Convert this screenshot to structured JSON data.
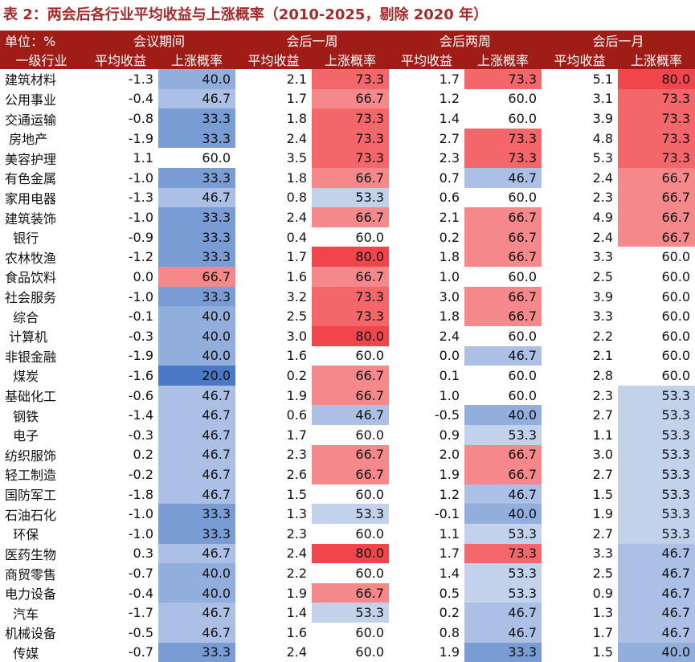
{
  "title": "表 2：两会后各行业平均收益与上涨概率（2010-2025，剔除 2020 年）",
  "header": {
    "unit_label": "单位：%",
    "industry_label": "一级行业",
    "groups": [
      "会议期间",
      "会后一周",
      "会后两周",
      "会后一月"
    ],
    "sub_return": "平均收益",
    "sub_prob": "上涨概率"
  },
  "colors": {
    "header_bg": "#a01c16",
    "title": "#a52a2a",
    "high": "#f0454a",
    "low": "#4a78c4",
    "neutral": "#ffffff"
  },
  "rows": [
    {
      "name": "建筑材料",
      "v": [
        "-1.3",
        "40.0",
        "2.1",
        "73.3",
        "1.7",
        "73.3",
        "5.1",
        "80.0"
      ]
    },
    {
      "name": "公用事业",
      "v": [
        "-0.4",
        "46.7",
        "1.7",
        "66.7",
        "1.2",
        "60.0",
        "3.1",
        "73.3"
      ]
    },
    {
      "name": "交通运输",
      "v": [
        "-0.8",
        "33.3",
        "1.8",
        "73.3",
        "1.4",
        "60.0",
        "3.9",
        "73.3"
      ]
    },
    {
      "name": " 房地产",
      "v": [
        "-1.9",
        "33.3",
        "2.4",
        "73.3",
        "2.7",
        "73.3",
        "4.8",
        "73.3"
      ]
    },
    {
      "name": "美容护理",
      "v": [
        "1.1",
        "60.0",
        "3.5",
        "73.3",
        "2.3",
        "73.3",
        "5.3",
        "73.3"
      ]
    },
    {
      "name": "有色金属",
      "v": [
        "-1.0",
        "33.3",
        "1.8",
        "66.7",
        "0.7",
        "46.7",
        "2.4",
        "66.7"
      ]
    },
    {
      "name": "家用电器",
      "v": [
        "-1.3",
        "46.7",
        "0.8",
        "53.3",
        "0.6",
        "60.0",
        "2.3",
        "66.7"
      ]
    },
    {
      "name": "建筑装饰",
      "v": [
        "-1.0",
        "33.3",
        "2.4",
        "66.7",
        "2.1",
        "66.7",
        "4.9",
        "66.7"
      ]
    },
    {
      "name": "  银行",
      "v": [
        "-0.9",
        "33.3",
        "0.4",
        "60.0",
        "0.2",
        "66.7",
        "2.4",
        "66.7"
      ]
    },
    {
      "name": "农林牧渔",
      "v": [
        "-1.2",
        "33.3",
        "1.7",
        "80.0",
        "1.8",
        "66.7",
        "3.3",
        "60.0"
      ]
    },
    {
      "name": "食品饮料",
      "v": [
        "0.0",
        "66.7",
        "1.6",
        "66.7",
        "1.0",
        "60.0",
        "2.5",
        "60.0"
      ]
    },
    {
      "name": "社会服务",
      "v": [
        "-1.0",
        "33.3",
        "3.2",
        "73.3",
        "3.0",
        "66.7",
        "3.9",
        "60.0"
      ]
    },
    {
      "name": "  综合",
      "v": [
        "-0.1",
        "40.0",
        "2.5",
        "73.3",
        "1.8",
        "66.7",
        "3.3",
        "60.0"
      ]
    },
    {
      "name": " 计算机",
      "v": [
        "-0.3",
        "40.0",
        "3.0",
        "80.0",
        "2.4",
        "60.0",
        "2.2",
        "60.0"
      ]
    },
    {
      "name": "非银金融",
      "v": [
        "-1.9",
        "40.0",
        "1.6",
        "60.0",
        "0.0",
        "46.7",
        "2.1",
        "60.0"
      ]
    },
    {
      "name": "  煤炭",
      "v": [
        "-1.6",
        "20.0",
        "0.2",
        "66.7",
        "0.1",
        "60.0",
        "2.8",
        "60.0"
      ]
    },
    {
      "name": "基础化工",
      "v": [
        "-0.6",
        "46.7",
        "1.9",
        "66.7",
        "1.0",
        "60.0",
        "2.3",
        "53.3"
      ]
    },
    {
      "name": "  钢铁",
      "v": [
        "-1.4",
        "46.7",
        "0.6",
        "46.7",
        "-0.5",
        "40.0",
        "2.7",
        "53.3"
      ]
    },
    {
      "name": "  电子",
      "v": [
        "-0.3",
        "46.7",
        "1.7",
        "60.0",
        "0.9",
        "53.3",
        "1.1",
        "53.3"
      ]
    },
    {
      "name": "纺织服饰",
      "v": [
        "0.2",
        "46.7",
        "2.3",
        "66.7",
        "2.0",
        "66.7",
        "3.0",
        "53.3"
      ]
    },
    {
      "name": "轻工制造",
      "v": [
        "-0.2",
        "46.7",
        "2.6",
        "66.7",
        "1.9",
        "66.7",
        "2.7",
        "53.3"
      ]
    },
    {
      "name": "国防军工",
      "v": [
        "-1.8",
        "46.7",
        "1.5",
        "60.0",
        "1.2",
        "46.7",
        "1.5",
        "53.3"
      ]
    },
    {
      "name": "石油石化",
      "v": [
        "-1.0",
        "33.3",
        "1.3",
        "53.3",
        "-0.1",
        "40.0",
        "1.9",
        "53.3"
      ]
    },
    {
      "name": "  环保",
      "v": [
        "-1.0",
        "33.3",
        "2.3",
        "60.0",
        "1.1",
        "53.3",
        "2.7",
        "53.3"
      ]
    },
    {
      "name": "医药生物",
      "v": [
        "0.3",
        "46.7",
        "2.4",
        "80.0",
        "1.7",
        "73.3",
        "3.3",
        "46.7"
      ]
    },
    {
      "name": "商贸零售",
      "v": [
        "-0.7",
        "40.0",
        "2.2",
        "60.0",
        "1.4",
        "53.3",
        "2.5",
        "46.7"
      ]
    },
    {
      "name": "电力设备",
      "v": [
        "-0.4",
        "40.0",
        "1.9",
        "66.7",
        "0.5",
        "53.3",
        "0.9",
        "46.7"
      ]
    },
    {
      "name": "  汽车",
      "v": [
        "-1.7",
        "46.7",
        "1.4",
        "53.3",
        "0.2",
        "46.7",
        "1.3",
        "46.7"
      ]
    },
    {
      "name": "机械设备",
      "v": [
        "-0.5",
        "46.7",
        "1.6",
        "60.0",
        "0.8",
        "46.7",
        "1.7",
        "46.7"
      ]
    },
    {
      "name": "  传媒",
      "v": [
        "-0.7",
        "33.3",
        "2.4",
        "60.0",
        "1.9",
        "33.3",
        "1.5",
        "40.0"
      ]
    }
  ]
}
